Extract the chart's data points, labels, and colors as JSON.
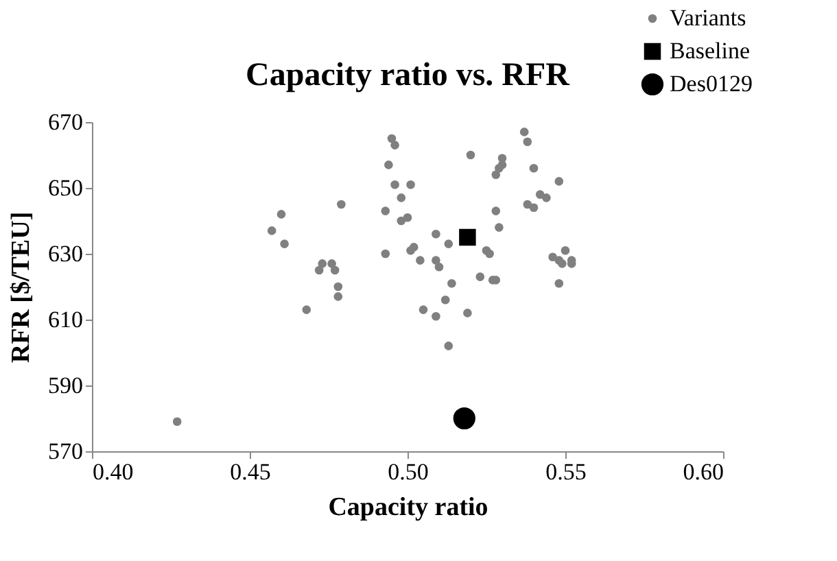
{
  "chart_data": {
    "type": "scatter",
    "title": "Capacity ratio vs. RFR",
    "xlabel": "Capacity ratio",
    "ylabel": "RFR [$/TEU]",
    "xlim": [
      0.4,
      0.6
    ],
    "xticks": [
      {
        "value": 0.4,
        "label": "0.40"
      },
      {
        "value": 0.45,
        "label": "0.45"
      },
      {
        "value": 0.5,
        "label": "0.50"
      },
      {
        "value": 0.55,
        "label": "0.55"
      },
      {
        "value": 0.6,
        "label": "0.60"
      }
    ],
    "ylim": [
      570,
      670
    ],
    "yticks": [
      570,
      590,
      610,
      630,
      650,
      670
    ],
    "grid": false,
    "legend": "top right",
    "series": [
      {
        "name": "Variants",
        "color": "#808080",
        "marker": "circle",
        "x": [
          0.427,
          0.457,
          0.46,
          0.461,
          0.468,
          0.472,
          0.473,
          0.476,
          0.477,
          0.478,
          0.478,
          0.479,
          0.495,
          0.496,
          0.494,
          0.496,
          0.501,
          0.498,
          0.493,
          0.498,
          0.5,
          0.493,
          0.501,
          0.502,
          0.504,
          0.509,
          0.509,
          0.51,
          0.513,
          0.514,
          0.512,
          0.505,
          0.509,
          0.513,
          0.519,
          0.52,
          0.523,
          0.525,
          0.526,
          0.527,
          0.528,
          0.528,
          0.529,
          0.528,
          0.529,
          0.53,
          0.53,
          0.537,
          0.538,
          0.54,
          0.538,
          0.54,
          0.542,
          0.544,
          0.548,
          0.546,
          0.548,
          0.549,
          0.55,
          0.552,
          0.552,
          0.548
        ],
        "values": [
          579,
          637,
          642,
          633,
          613,
          625,
          627,
          627,
          625,
          620,
          617,
          645,
          665,
          663,
          657,
          651,
          651,
          647,
          643,
          640,
          641,
          630,
          631,
          632,
          628,
          636,
          628,
          626,
          633,
          621,
          616,
          613,
          611,
          602,
          612,
          660,
          623,
          631,
          630,
          622,
          622,
          643,
          638,
          654,
          656,
          657,
          659,
          667,
          664,
          656,
          645,
          644,
          648,
          647,
          652,
          629,
          628,
          627,
          631,
          628,
          627,
          621
        ]
      },
      {
        "name": "Baseline",
        "color": "#000000",
        "marker": "square",
        "x": [
          0.519
        ],
        "values": [
          635
        ]
      },
      {
        "name": "Des0129",
        "color": "#000000",
        "marker": "circle",
        "x": [
          0.518
        ],
        "values": [
          580
        ]
      }
    ]
  }
}
